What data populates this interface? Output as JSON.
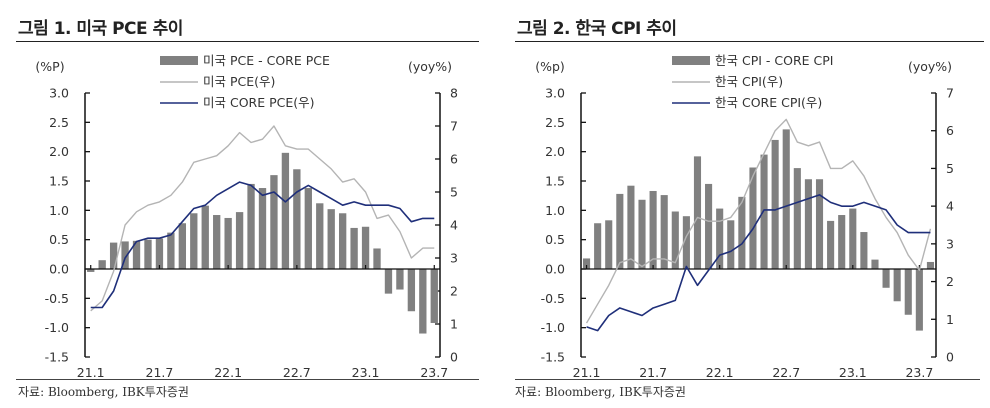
{
  "chart_data": [
    {
      "type": "bar+line",
      "title": "그림 1. 미국 PCE 추이",
      "left_unit": "(%P)",
      "right_unit": "(yoy%)",
      "left_ylim": [
        -1.5,
        3.0
      ],
      "left_ticks": [
        "3.0",
        "2.5",
        "2.0",
        "1.5",
        "1.0",
        "0.5",
        "0.0",
        "-0.5",
        "-1.0",
        "-1.5"
      ],
      "right_ylim": [
        0,
        8
      ],
      "right_ticks": [
        "8",
        "7",
        "6",
        "5",
        "4",
        "3",
        "2",
        "1",
        "0"
      ],
      "x_ticks": [
        "21.1",
        "21.7",
        "22.1",
        "22.7",
        "23.1",
        "23.7"
      ],
      "legend": [
        "미국 PCE - CORE PCE",
        "미국 PCE(우)",
        "미국 CORE PCE(우)"
      ],
      "source": "자료: Bloomberg, IBK투자증권",
      "series": [
        {
          "name": "미국 PCE - CORE PCE",
          "axis": "left",
          "kind": "bar",
          "color": "#808080",
          "values": [
            -0.05,
            0.15,
            0.45,
            0.47,
            0.48,
            0.5,
            0.52,
            0.62,
            0.78,
            0.95,
            1.08,
            0.92,
            0.87,
            0.97,
            1.45,
            1.38,
            1.6,
            1.98,
            1.7,
            1.38,
            1.12,
            1.02,
            0.95,
            0.7,
            0.72,
            0.35,
            -0.42,
            -0.35,
            -0.72,
            -1.1,
            -0.92
          ]
        },
        {
          "name": "미국 PCE(우)",
          "axis": "right",
          "kind": "line",
          "color": "#b4b4b4",
          "values": [
            1.4,
            1.7,
            2.6,
            4.0,
            4.4,
            4.6,
            4.7,
            4.9,
            5.3,
            5.9,
            6.0,
            6.1,
            6.4,
            6.8,
            6.5,
            6.6,
            7.0,
            6.4,
            6.3,
            6.3,
            6.0,
            5.7,
            5.3,
            5.4,
            5.0,
            4.2,
            4.3,
            3.8,
            3.0,
            3.3,
            3.3
          ]
        },
        {
          "name": "미국 CORE PCE(우)",
          "axis": "right",
          "kind": "line",
          "color": "#1f2f7a",
          "values": [
            1.5,
            1.5,
            2.0,
            3.0,
            3.5,
            3.6,
            3.6,
            3.7,
            4.1,
            4.5,
            4.6,
            4.9,
            5.1,
            5.3,
            5.2,
            4.9,
            5.0,
            4.7,
            5.0,
            5.2,
            5.0,
            4.8,
            4.6,
            4.7,
            4.6,
            4.6,
            4.6,
            4.5,
            4.1,
            4.2,
            4.2
          ]
        }
      ]
    },
    {
      "type": "bar+line",
      "title": "그림 2. 한국 CPI 추이",
      "left_unit": "(%p)",
      "right_unit": "(yoy%)",
      "left_ylim": [
        -1.5,
        3.0
      ],
      "left_ticks": [
        "3.0",
        "2.5",
        "2.0",
        "1.5",
        "1.0",
        "0.5",
        "0.0",
        "-0.5",
        "-1.0",
        "-1.5"
      ],
      "right_ylim": [
        0,
        7
      ],
      "right_ticks": [
        "7",
        "6",
        "5",
        "4",
        "3",
        "2",
        "1",
        "0"
      ],
      "x_ticks": [
        "21.1",
        "21.7",
        "22.1",
        "22.7",
        "23.1",
        "23.7"
      ],
      "legend": [
        "한국 CPI - CORE CPI",
        "한국 CPI(우)",
        "한국 CORE CPI(우)"
      ],
      "source": "자료: Bloomberg, IBK투자증권",
      "series": [
        {
          "name": "한국 CPI - CORE CPI",
          "axis": "left",
          "kind": "bar",
          "color": "#808080",
          "values": [
            0.18,
            0.78,
            0.83,
            1.28,
            1.42,
            1.18,
            1.33,
            1.26,
            0.98,
            0.9,
            1.92,
            1.45,
            1.03,
            0.83,
            1.23,
            1.73,
            1.95,
            2.2,
            2.38,
            1.72,
            1.53,
            1.53,
            0.82,
            0.92,
            1.03,
            0.63,
            0.16,
            -0.32,
            -0.55,
            -0.78,
            -1.05,
            0.12
          ]
        },
        {
          "name": "한국 CPI(우)",
          "axis": "right",
          "kind": "line",
          "color": "#b4b4b4",
          "values": [
            0.9,
            1.4,
            1.9,
            2.5,
            2.6,
            2.4,
            2.6,
            2.6,
            2.5,
            3.2,
            3.7,
            3.6,
            3.6,
            3.7,
            4.1,
            4.8,
            5.4,
            6.0,
            6.3,
            5.7,
            5.6,
            5.7,
            5.0,
            5.0,
            5.2,
            4.8,
            4.2,
            3.7,
            3.3,
            2.7,
            2.3,
            3.4
          ]
        },
        {
          "name": "한국 CORE CPI(우)",
          "axis": "right",
          "kind": "line",
          "color": "#1f2f7a",
          "values": [
            0.8,
            0.7,
            1.1,
            1.3,
            1.2,
            1.1,
            1.3,
            1.4,
            1.5,
            2.4,
            1.9,
            2.3,
            2.7,
            2.8,
            3.0,
            3.4,
            3.9,
            3.9,
            4.0,
            4.1,
            4.2,
            4.3,
            4.1,
            4.0,
            4.0,
            4.1,
            4.0,
            3.9,
            3.5,
            3.3,
            3.3,
            3.3
          ]
        }
      ]
    }
  ]
}
